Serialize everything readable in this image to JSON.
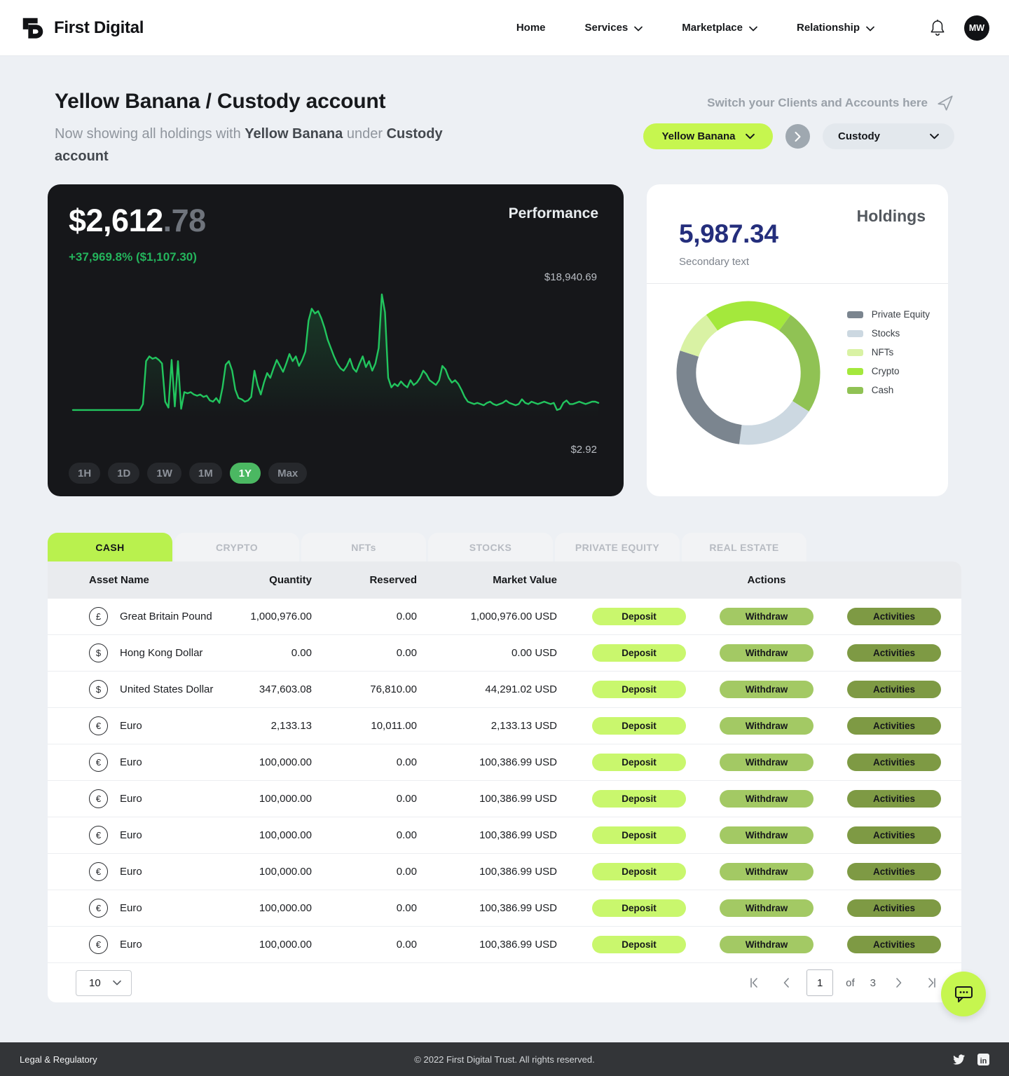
{
  "theme": {
    "accent_lime": "#c6f64f",
    "tab_active_lime": "#b9f14e",
    "chart_green": "#22c55e",
    "change_green": "#24b45c",
    "range_active_green": "#4bb862",
    "holdings_navy": "#242e7c",
    "dark_card": "#16171a",
    "footer_dark": "#333538",
    "deposit_btn": "#c9f76d",
    "withdraw_btn": "#a3c964",
    "activities_btn": "#7e9a44"
  },
  "nav": {
    "brand": "First Digital",
    "items": [
      {
        "label": "Home",
        "has_dropdown": false
      },
      {
        "label": "Services",
        "has_dropdown": true
      },
      {
        "label": "Marketplace",
        "has_dropdown": true
      },
      {
        "label": "Relationship",
        "has_dropdown": true
      }
    ],
    "avatar_initials": "MW"
  },
  "header": {
    "title": "Yellow Banana / Custody account",
    "subtitle": {
      "prefix": "Now showing all holdings with ",
      "client": "Yellow Banana",
      "mid": " under ",
      "account": "Custody account"
    },
    "switch_hint": "Switch your Clients and Accounts here",
    "client_selector": "Yellow Banana",
    "account_selector": "Custody"
  },
  "performance": {
    "title": "Performance",
    "value_main": "$2,612",
    "value_cents": ".78",
    "change": "+37,969.8% ($1,107.30)",
    "ranges": [
      "1H",
      "1D",
      "1W",
      "1M",
      "1Y",
      "Max"
    ],
    "active_range": "1Y"
  },
  "holdings": {
    "title": "Holdings",
    "value": "5,987.34",
    "secondary": "Secondary text"
  },
  "chart_data": [
    {
      "type": "line",
      "title": "Performance",
      "current_value": "$2,612.78",
      "change": "+37,969.8% ($1,107.30)",
      "y_max_label": "$18,940.69",
      "y_min_label": "$2.92",
      "active_range": "1Y",
      "line_color": "#22c55e",
      "points": [
        3,
        3,
        3,
        3,
        3,
        3,
        3,
        3,
        3,
        3,
        3,
        3,
        3,
        3,
        3,
        3,
        3,
        3,
        3,
        3,
        3,
        3,
        8,
        44,
        48,
        46,
        47,
        45,
        42,
        10,
        5,
        45,
        6,
        44,
        4,
        18,
        17,
        18,
        16,
        15,
        16,
        14,
        15,
        11,
        10,
        13,
        9,
        22,
        41,
        44,
        36,
        20,
        13,
        12,
        10,
        11,
        14,
        36,
        24,
        16,
        26,
        34,
        30,
        38,
        45,
        40,
        35,
        42,
        50,
        44,
        48,
        40,
        45,
        52,
        78,
        88,
        84,
        86,
        80,
        72,
        62,
        55,
        48,
        42,
        38,
        36,
        40,
        46,
        38,
        35,
        42,
        48,
        39,
        44,
        36,
        42,
        55,
        100,
        85,
        30,
        22,
        25,
        23,
        27,
        24,
        22,
        28,
        24,
        26,
        30,
        36,
        33,
        28,
        26,
        24,
        28,
        40,
        37,
        30,
        26,
        28,
        25,
        20,
        14,
        10,
        9,
        8,
        9,
        8,
        7,
        9,
        10,
        8,
        7,
        8,
        9,
        11,
        9,
        8,
        7,
        8,
        12,
        9,
        8,
        10,
        9,
        8,
        9,
        10,
        9,
        8,
        9,
        3,
        4,
        9,
        11,
        8,
        8,
        9,
        10,
        9,
        8,
        9,
        10,
        10,
        9
      ]
    },
    {
      "type": "donut",
      "title": "Holdings",
      "total": "5,987.34",
      "draw_order": [
        3,
        4,
        1,
        0,
        2
      ],
      "segments": [
        {
          "label": "Private Equity",
          "value": 28,
          "color": "#7b858f"
        },
        {
          "label": "Stocks",
          "value": 18,
          "color": "#ccd8e1"
        },
        {
          "label": "NFTs",
          "value": 10,
          "color": "#d9f2a4"
        },
        {
          "label": "Crypto",
          "value": 20,
          "color": "#a4e83c"
        },
        {
          "label": "Cash",
          "value": 24,
          "color": "#90c254"
        }
      ]
    }
  ],
  "tabs": [
    "CASH",
    "CRYPTO",
    "NFTs",
    "STOCKS",
    "PRIVATE EQUITY",
    "REAL ESTATE"
  ],
  "table": {
    "columns": [
      "Asset Name",
      "Quantity",
      "Reserved",
      "Market Value",
      "Actions"
    ],
    "actions": [
      "Deposit",
      "Withdraw",
      "Activities"
    ],
    "rows": [
      {
        "symbol": "£",
        "name": "Great Britain Pound",
        "quantity": "1,000,976.00",
        "reserved": "0.00",
        "market_value": "1,000,976.00 USD"
      },
      {
        "symbol": "$",
        "name": "Hong Kong Dollar",
        "quantity": "0.00",
        "reserved": "0.00",
        "market_value": "0.00 USD"
      },
      {
        "symbol": "$",
        "name": "United States Dollar",
        "quantity": "347,603.08",
        "reserved": "76,810.00",
        "market_value": "44,291.02 USD"
      },
      {
        "symbol": "€",
        "name": "Euro",
        "quantity": "2,133.13",
        "reserved": "10,011.00",
        "market_value": "2,133.13 USD"
      },
      {
        "symbol": "€",
        "name": "Euro",
        "quantity": "100,000.00",
        "reserved": "0.00",
        "market_value": "100,386.99 USD"
      },
      {
        "symbol": "€",
        "name": "Euro",
        "quantity": "100,000.00",
        "reserved": "0.00",
        "market_value": "100,386.99 USD"
      },
      {
        "symbol": "€",
        "name": "Euro",
        "quantity": "100,000.00",
        "reserved": "0.00",
        "market_value": "100,386.99 USD"
      },
      {
        "symbol": "€",
        "name": "Euro",
        "quantity": "100,000.00",
        "reserved": "0.00",
        "market_value": "100,386.99 USD"
      },
      {
        "symbol": "€",
        "name": "Euro",
        "quantity": "100,000.00",
        "reserved": "0.00",
        "market_value": "100,386.99 USD"
      },
      {
        "symbol": "€",
        "name": "Euro",
        "quantity": "100,000.00",
        "reserved": "0.00",
        "market_value": "100,386.99 USD"
      }
    ]
  },
  "pagination": {
    "page_size": "10",
    "current_page": "1",
    "of_label": "of",
    "total_pages": "3"
  },
  "footer": {
    "left": "Legal & Regulatory",
    "center": "© 2022 First Digital Trust. All rights reserved."
  }
}
